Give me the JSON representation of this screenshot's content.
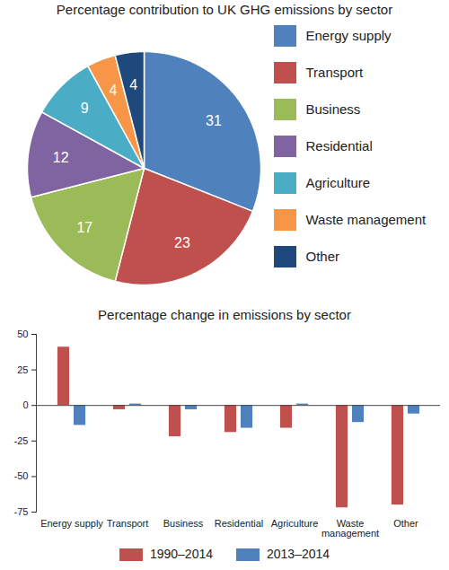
{
  "chart_data": [
    {
      "type": "pie",
      "title": "Percentage contribution to UK GHG emissions by sector",
      "categories": [
        "Energy supply",
        "Transport",
        "Business",
        "Residential",
        "Agriculture",
        "Waste management",
        "Other"
      ],
      "values": [
        31,
        23,
        17,
        12,
        9,
        4,
        4
      ],
      "colors": [
        "#4f81bd",
        "#c0504d",
        "#9bbb59",
        "#8064a2",
        "#4bacc6",
        "#f79646",
        "#1f497d"
      ],
      "data_labels": true,
      "legend": "right"
    },
    {
      "type": "bar",
      "title": "Percentage change in emissions by sector",
      "categories": [
        "Energy supply",
        "Transport",
        "Business",
        "Residential",
        "Agriculture",
        "Waste management",
        "Other"
      ],
      "series": [
        {
          "name": "1990–2014",
          "color": "#c0504d",
          "values": [
            41,
            -3,
            -22,
            -19,
            -16,
            -72,
            -70
          ]
        },
        {
          "name": "2013–2014",
          "color": "#4f81bd",
          "values": [
            -14,
            1,
            -3,
            -16,
            1,
            -12,
            -6
          ]
        }
      ],
      "ylim": [
        -75,
        50
      ],
      "yticks": [
        -75,
        -50,
        -25,
        0,
        25,
        50
      ],
      "grid": false,
      "legend": "bottom"
    }
  ]
}
